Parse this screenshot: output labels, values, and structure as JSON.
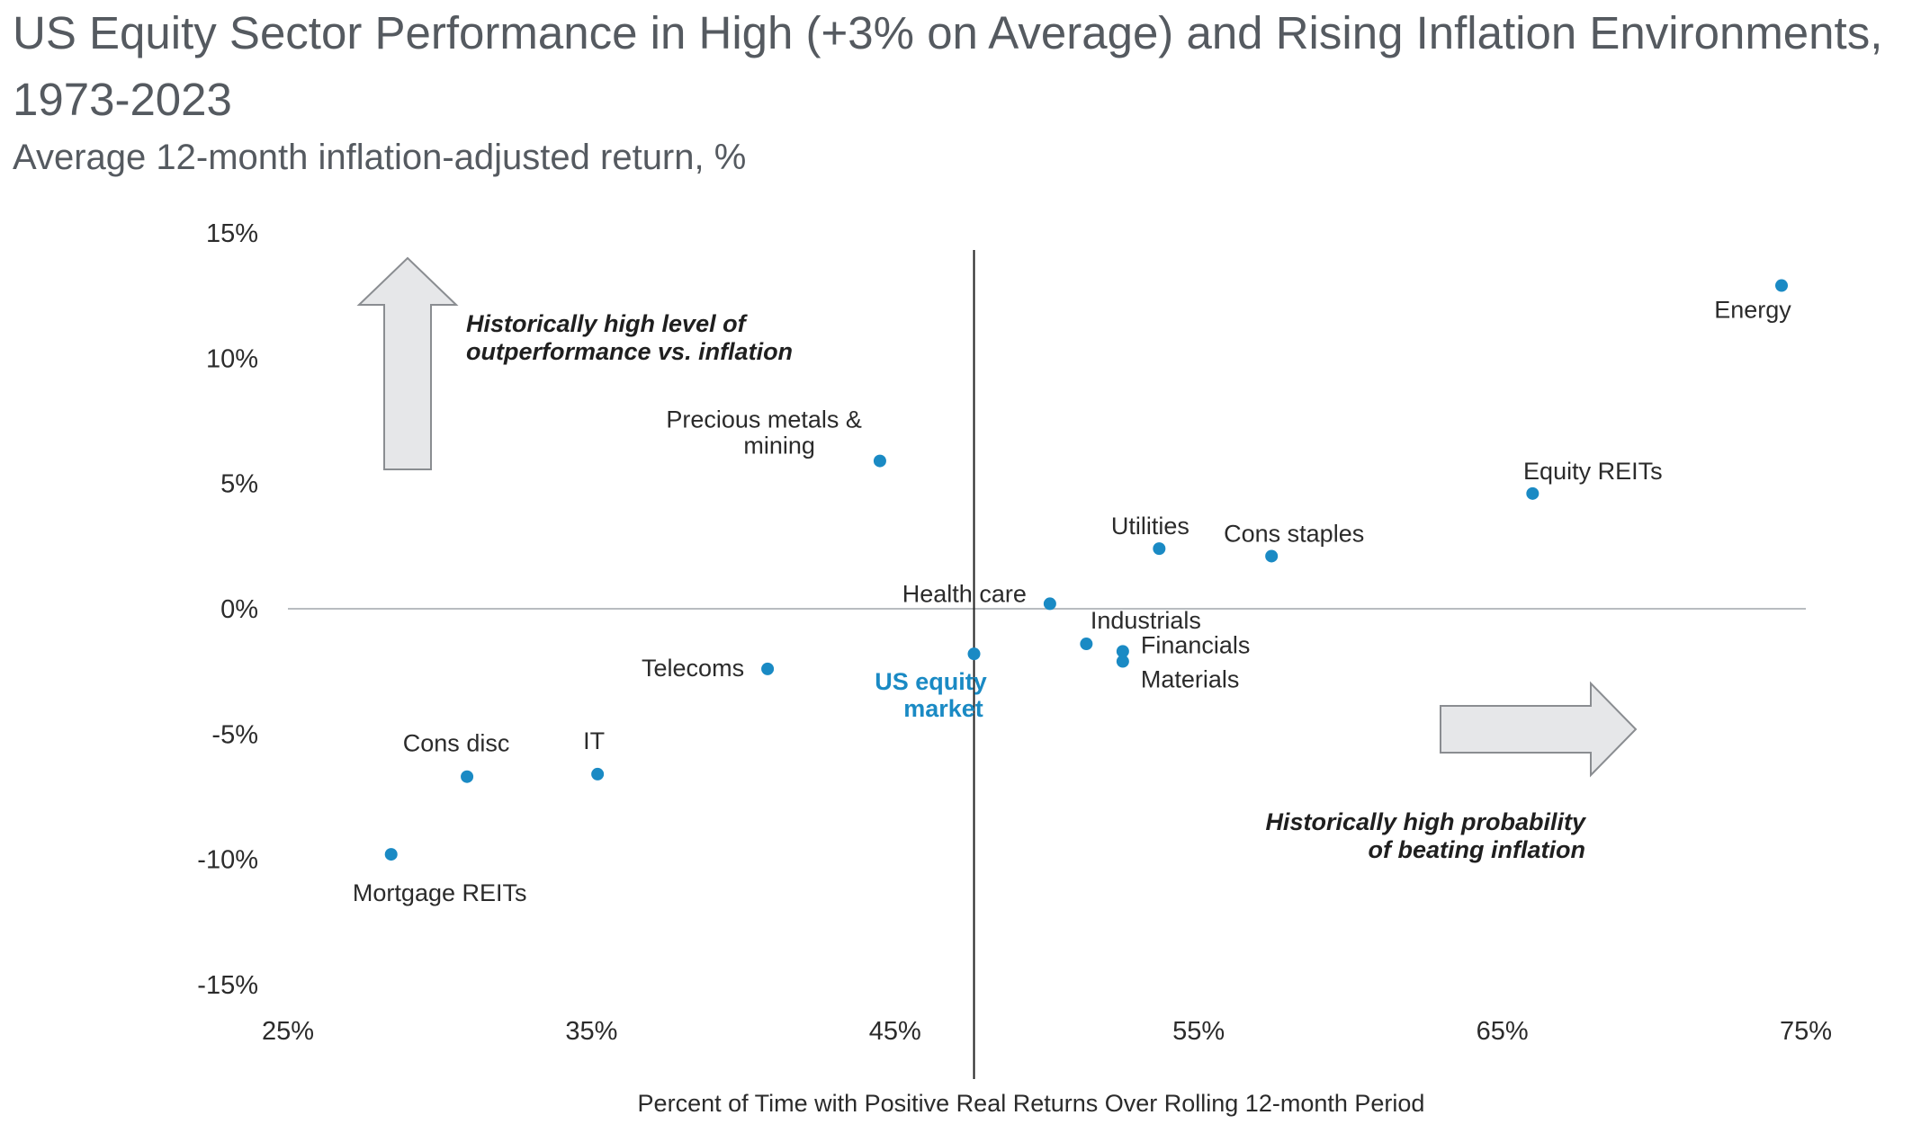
{
  "chart_data": {
    "type": "scatter",
    "title": "US Equity Sector Performance in High (+3% on Average) and Rising Inflation Environments, 1973-2023",
    "subtitle": "Average 12-month inflation-adjusted return, %",
    "xlabel": "Percent of Time with Positive Real Returns Over Rolling 12-month Period",
    "xlim": [
      25,
      75
    ],
    "ylim": [
      -15,
      15
    ],
    "x_ticks": [
      "25%",
      "35%",
      "45%",
      "55%",
      "65%",
      "75%"
    ],
    "y_ticks": [
      "15%",
      "10%",
      "5%",
      "0%",
      "-5%",
      "-10%",
      "-15%"
    ],
    "points": [
      {
        "name": "Energy",
        "x": 74.2,
        "y": 12.9
      },
      {
        "name": "Precious metals & mining",
        "x": 44.5,
        "y": 5.9
      },
      {
        "name": "Equity REITs",
        "x": 66.0,
        "y": 4.6
      },
      {
        "name": "Utilities",
        "x": 53.7,
        "y": 2.4
      },
      {
        "name": "Cons staples",
        "x": 57.4,
        "y": 2.1
      },
      {
        "name": "Health care",
        "x": 50.1,
        "y": 0.2
      },
      {
        "name": "Industrials",
        "x": 51.3,
        "y": -1.4
      },
      {
        "name": "Financials",
        "x": 52.5,
        "y": -1.7
      },
      {
        "name": "Materials",
        "x": 52.5,
        "y": -2.1
      },
      {
        "name": "US equity market",
        "x": 47.6,
        "y": -1.8
      },
      {
        "name": "Telecoms",
        "x": 40.8,
        "y": -2.4
      },
      {
        "name": "IT",
        "x": 35.2,
        "y": -6.6
      },
      {
        "name": "Cons disc",
        "x": 30.9,
        "y": -6.7
      },
      {
        "name": "Mortgage REITs",
        "x": 28.4,
        "y": -9.8
      }
    ],
    "reference_x": 47.6,
    "reference_y": 0,
    "annotations": [
      {
        "line1": "Historically high level of",
        "line2": "outperformance vs. inflation"
      },
      {
        "line1": "Historically high probability",
        "line2": "of beating inflation"
      }
    ],
    "colors": {
      "point": "#1a8ac4",
      "market_label": "#1a8ac4",
      "arrow_fill": "#e6e7e9",
      "arrow_stroke": "#8a8d91",
      "axis": "#b8bcc0"
    }
  }
}
